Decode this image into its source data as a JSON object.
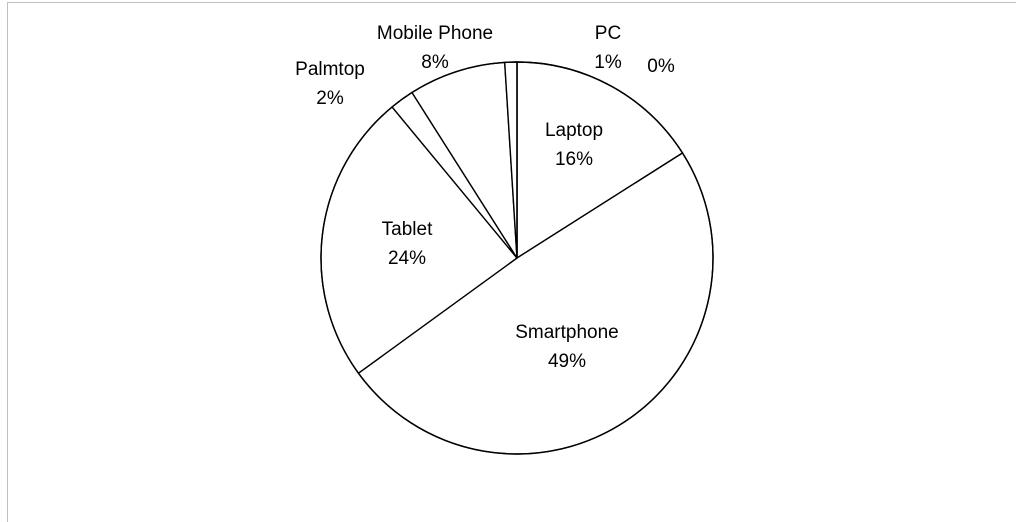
{
  "chart_data": {
    "type": "pie",
    "title": "",
    "slices": [
      {
        "name": "Laptop",
        "value": 16,
        "label": "16%"
      },
      {
        "name": "Smartphone",
        "value": 49,
        "label": "49%"
      },
      {
        "name": "Tablet",
        "value": 24,
        "label": "24%"
      },
      {
        "name": "Palmtop",
        "value": 2,
        "label": "2%"
      },
      {
        "name": "Mobile Phone",
        "value": 8,
        "label": "8%"
      },
      {
        "name": "PC",
        "value": 1,
        "label": "1%"
      },
      {
        "name": "",
        "value": 0,
        "label": "0%"
      }
    ],
    "slice_fill": "#ffffff",
    "slice_stroke": "#000000",
    "legend": "none",
    "start": "top, clockwise"
  }
}
